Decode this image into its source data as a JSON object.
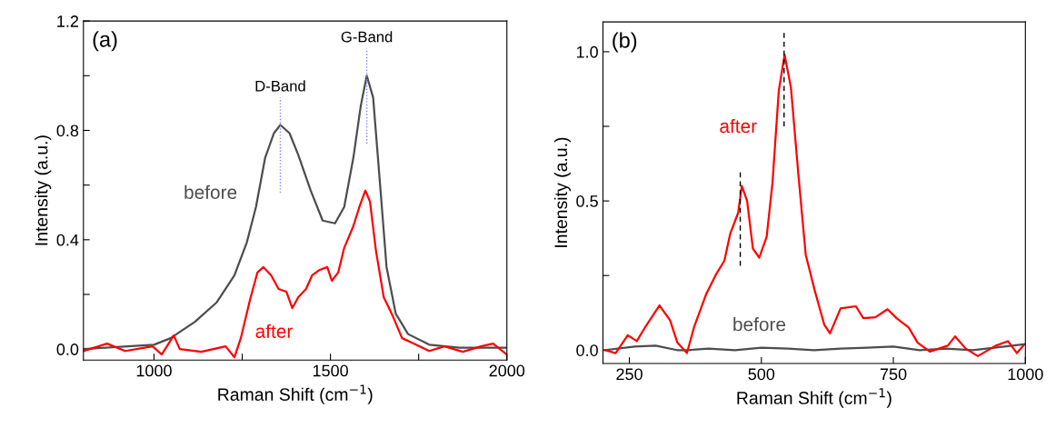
{
  "chart_data": [
    {
      "type": "line",
      "xlabel": "Raman Shift (cm$^{−1}$)",
      "ylabel": "Intensity (a.u.)",
      "xlim": [
        800,
        2000
      ],
      "xticks": [
        1000,
        {
          "value": 1250,
          "label": null
        },
        1500,
        {
          "value": 1750,
          "label": null
        },
        2000
      ],
      "ylim": [
        -0.04,
        1.2
      ],
      "yticks": [
        {
          "value": 0.0,
          "label": "0.0"
        },
        {
          "value": 0.2,
          "label": null
        },
        0.4,
        {
          "value": 0.6,
          "label": null
        },
        0.8,
        {
          "value": 1.0,
          "label": null
        },
        1.2
      ],
      "grid": false,
      "legend": false,
      "series": [
        {
          "name": "before",
          "color": "#4d4d4d",
          "x": [
            800,
            1000,
            1047,
            1116,
            1177,
            1228,
            1263,
            1289,
            1315,
            1340,
            1358,
            1384,
            1409,
            1444,
            1478,
            1513,
            1539,
            1565,
            1586,
            1603,
            1621,
            1642,
            1659,
            1685,
            1720,
            1780,
            1866,
            2000
          ],
          "values": [
            0.0,
            0.016,
            0.04,
            0.1,
            0.17,
            0.27,
            0.39,
            0.52,
            0.7,
            0.79,
            0.82,
            0.79,
            0.71,
            0.58,
            0.47,
            0.46,
            0.52,
            0.7,
            0.89,
            1.0,
            0.92,
            0.58,
            0.3,
            0.13,
            0.055,
            0.016,
            0.005,
            0.005
          ]
        },
        {
          "name": "after",
          "color": "#ff0000",
          "x": [
            800,
            867,
            918,
            996,
            1022,
            1056,
            1073,
            1134,
            1203,
            1228,
            1246,
            1272,
            1293,
            1310,
            1332,
            1353,
            1375,
            1392,
            1409,
            1431,
            1448,
            1470,
            1491,
            1504,
            1522,
            1539,
            1565,
            1582,
            1599,
            1612,
            1629,
            1651,
            1677,
            1703,
            1737,
            1780,
            1823,
            1875,
            1927,
            1961,
            2000
          ],
          "values": [
            -0.007,
            0.02,
            -0.007,
            0.01,
            -0.02,
            0.05,
            0.0,
            -0.01,
            0.01,
            -0.03,
            0.04,
            0.18,
            0.28,
            0.3,
            0.27,
            0.22,
            0.21,
            0.15,
            0.19,
            0.22,
            0.27,
            0.29,
            0.3,
            0.25,
            0.28,
            0.37,
            0.45,
            0.52,
            0.58,
            0.54,
            0.36,
            0.19,
            0.12,
            0.04,
            0.02,
            -0.007,
            0.01,
            -0.01,
            0.01,
            0.02,
            -0.02
          ]
        }
      ],
      "ref_lines": [
        {
          "axis": "x",
          "value": 1358,
          "label": "D-Band",
          "color": "#8080ff",
          "line_style": "dotted"
        },
        {
          "axis": "x",
          "value": 1603,
          "label": "G-Band",
          "color": "#8080ff",
          "line_style": "dotted"
        }
      ],
      "annotations": [
        "(a)"
      ]
    },
    {
      "type": "line",
      "xlabel": "Raman Shift (cm$^{−1}$)",
      "ylabel": "Intensity (a.u.)",
      "xlim": [
        200,
        1000
      ],
      "xticks": [
        250,
        500,
        750,
        1000
      ],
      "ylim": [
        -0.045,
        1.1
      ],
      "yticks": [
        {
          "value": 0.0,
          "label": "0.0"
        },
        {
          "value": 0.25,
          "label": null
        },
        0.5,
        {
          "value": 0.75,
          "label": null
        },
        {
          "value": 1.0,
          "label": "1.0"
        }
      ],
      "grid": false,
      "legend": false,
      "series": [
        {
          "name": "before",
          "color": "#4d4d4d",
          "x": [
            204,
            260,
            300,
            340,
            360,
            400,
            450,
            500,
            550,
            600,
            650,
            700,
            750,
            800,
            850,
            900,
            1000
          ],
          "values": [
            0.0,
            0.012,
            0.015,
            0.0,
            0.0,
            0.005,
            0.0,
            0.008,
            0.005,
            0.0,
            0.005,
            0.008,
            0.012,
            0.0,
            0.005,
            0.0,
            0.02
          ]
        },
        {
          "name": "after",
          "color": "#ff0000",
          "x": [
            204,
            224,
            247,
            264,
            281,
            307,
            327,
            341,
            359,
            373,
            396,
            413,
            430,
            441,
            456,
            463,
            473,
            484,
            496,
            510,
            521,
            533,
            544,
            556,
            570,
            584,
            601,
            619,
            630,
            650,
            679,
            693,
            716,
            739,
            756,
            779,
            796,
            819,
            853,
            867,
            887,
            910,
            944,
            967,
            984,
            996
          ],
          "values": [
            0.0,
            -0.01,
            0.05,
            0.03,
            0.08,
            0.15,
            0.1,
            0.025,
            -0.01,
            0.08,
            0.19,
            0.25,
            0.3,
            0.39,
            0.46,
            0.55,
            0.5,
            0.34,
            0.31,
            0.38,
            0.56,
            0.87,
            0.99,
            0.88,
            0.59,
            0.32,
            0.2,
            0.086,
            0.056,
            0.14,
            0.147,
            0.107,
            0.11,
            0.137,
            0.107,
            0.076,
            0.025,
            -0.005,
            0.015,
            0.046,
            0.005,
            -0.02,
            0.015,
            0.03,
            -0.01,
            0.015
          ]
        }
      ],
      "ref_lines": [
        {
          "axis": "x",
          "value": 460,
          "color": "#000000",
          "line_style": "dashed"
        },
        {
          "axis": "x",
          "value": 543,
          "color": "#000000",
          "line_style": "dashed"
        }
      ],
      "annotations": [
        "(b)"
      ]
    }
  ]
}
